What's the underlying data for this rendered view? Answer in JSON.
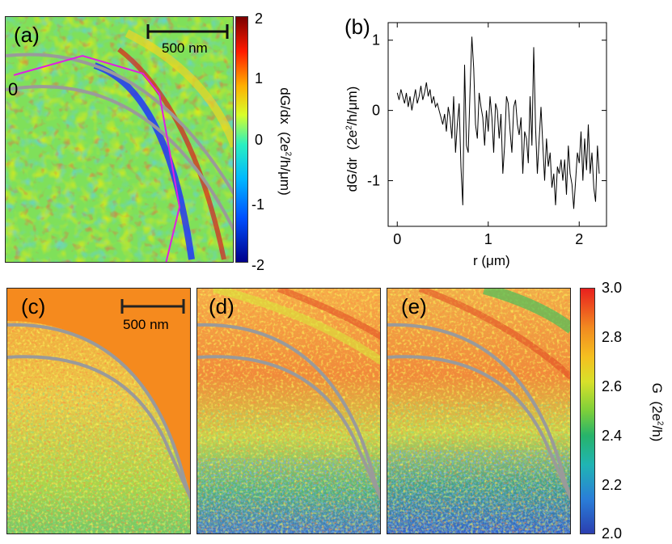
{
  "panel_a": {
    "label": "(a)",
    "scale_bar": "500 nm",
    "origin_marker": "0",
    "colorbar": {
      "ticks": [
        "2",
        "1",
        "0",
        "-1",
        "-2"
      ],
      "title_main": "dG/dx",
      "title_unit_pre": "(2e",
      "title_unit_sup": "2",
      "title_unit_post": "/h/μm)"
    }
  },
  "panel_b": {
    "label": "(b)",
    "ylabel_main": "dG/dr",
    "ylabel_unit_pre": "(2e",
    "ylabel_unit_sup": "2",
    "ylabel_unit_post": "/h/μm)",
    "xlabel": "r  (μm)",
    "xticks": [
      "0",
      "1",
      "2"
    ],
    "yticks": [
      "1",
      "0",
      "-1"
    ]
  },
  "panel_c": {
    "label": "(c)",
    "scale_bar": "500 nm"
  },
  "panel_d": {
    "label": "(d)"
  },
  "panel_e": {
    "label": "(e)"
  },
  "colorbar_bottom": {
    "ticks": [
      "3.0",
      "2.8",
      "2.6",
      "2.4",
      "2.2",
      "2.0"
    ],
    "title_main": "G",
    "title_unit_pre": "(2e",
    "title_unit_sup": "2",
    "title_unit_post": "/h)"
  },
  "chart_data": {
    "type": "line",
    "xlabel": "r  (μm)",
    "ylabel": "dG/dr  (2e²/h/μm)",
    "xlim": [
      -0.1,
      2.3
    ],
    "ylim": [
      -1.65,
      1.25
    ],
    "x": [
      0.0,
      0.02,
      0.04,
      0.06,
      0.08,
      0.1,
      0.12,
      0.14,
      0.16,
      0.18,
      0.2,
      0.22,
      0.24,
      0.26,
      0.28,
      0.3,
      0.32,
      0.34,
      0.36,
      0.38,
      0.4,
      0.42,
      0.44,
      0.46,
      0.48,
      0.5,
      0.52,
      0.54,
      0.56,
      0.58,
      0.6,
      0.62,
      0.64,
      0.66,
      0.68,
      0.7,
      0.72,
      0.74,
      0.76,
      0.78,
      0.8,
      0.82,
      0.84,
      0.86,
      0.88,
      0.9,
      0.92,
      0.94,
      0.96,
      0.98,
      1.0,
      1.02,
      1.04,
      1.06,
      1.08,
      1.1,
      1.12,
      1.14,
      1.16,
      1.18,
      1.2,
      1.22,
      1.24,
      1.26,
      1.28,
      1.3,
      1.32,
      1.34,
      1.36,
      1.38,
      1.4,
      1.42,
      1.44,
      1.46,
      1.48,
      1.5,
      1.52,
      1.54,
      1.56,
      1.58,
      1.6,
      1.62,
      1.64,
      1.66,
      1.68,
      1.7,
      1.72,
      1.74,
      1.76,
      1.78,
      1.8,
      1.82,
      1.84,
      1.86,
      1.88,
      1.9,
      1.92,
      1.94,
      1.96,
      1.98,
      2.0,
      2.02,
      2.04,
      2.06,
      2.08,
      2.1,
      2.12,
      2.14,
      2.16,
      2.18,
      2.2,
      2.22
    ],
    "y": [
      0.25,
      0.15,
      0.3,
      0.2,
      0.1,
      0.25,
      0.05,
      0.2,
      0.0,
      0.15,
      0.3,
      0.1,
      0.2,
      0.35,
      0.15,
      0.25,
      0.4,
      0.2,
      0.3,
      0.1,
      0.2,
      0.05,
      0.1,
      0.0,
      -0.1,
      -0.2,
      -0.05,
      -0.3,
      0.05,
      -0.1,
      -0.4,
      0.2,
      -0.6,
      -0.2,
      0.1,
      -0.8,
      -1.35,
      0.65,
      -0.5,
      -0.6,
      0.3,
      1.05,
      0.6,
      -0.2,
      -0.4,
      0.25,
      0.05,
      -0.1,
      -0.5,
      0.0,
      -0.3,
      0.2,
      -0.1,
      -0.6,
      0.1,
      0.0,
      -0.4,
      -0.05,
      -0.9,
      -0.5,
      0.2,
      0.1,
      -0.3,
      -0.6,
      0.05,
      0.15,
      -0.2,
      -0.35,
      -0.1,
      -0.9,
      -0.3,
      -0.4,
      -0.75,
      0.2,
      -0.5,
      0.9,
      -0.25,
      -0.9,
      -0.4,
      0.05,
      -0.5,
      -1.0,
      -0.4,
      -0.8,
      -0.6,
      -1.1,
      -0.9,
      -1.35,
      -0.8,
      -0.9,
      -0.7,
      -1.0,
      -0.7,
      -1.2,
      -0.5,
      -0.9,
      -1.05,
      -1.4,
      -1.0,
      -0.6,
      -0.75,
      -0.3,
      -1.0,
      -0.4,
      -0.85,
      -0.2,
      -0.9,
      -0.6,
      -1.1,
      -1.3,
      -0.5,
      -0.9
    ],
    "grid": false
  }
}
